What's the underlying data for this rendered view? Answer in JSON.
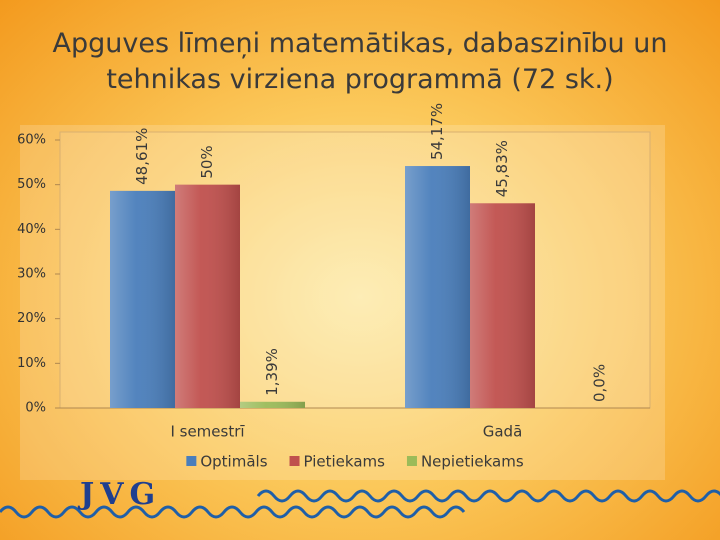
{
  "chart_data": {
    "type": "bar",
    "title": "Apguves līmeņi matemātikas, dabaszinību un tehnikas virziena programmā (72 sk.)",
    "categories": [
      "I semestrī",
      "Gadā"
    ],
    "series": [
      {
        "name": "Optimāls",
        "color": "#4a7ebb",
        "values": [
          48.61,
          54.17
        ],
        "value_labels": [
          "48,61%",
          "54,17%"
        ]
      },
      {
        "name": "Pietiekams",
        "color": "#c0504d",
        "values": [
          50,
          45.83
        ],
        "value_labels": [
          "50%",
          "45,83%"
        ]
      },
      {
        "name": "Nepietiekams",
        "color": "#9bbb59",
        "values": [
          1.39,
          0
        ],
        "value_labels": [
          "1,39%",
          "0,0%"
        ]
      }
    ],
    "ylim": [
      0,
      60
    ],
    "yticks": [
      {
        "value": 0,
        "label": "0%"
      },
      {
        "value": 10,
        "label": "10%"
      },
      {
        "value": 20,
        "label": "20%"
      },
      {
        "value": 30,
        "label": "30%"
      },
      {
        "value": 40,
        "label": "40%"
      },
      {
        "value": 50,
        "label": "50%"
      },
      {
        "value": 60,
        "label": "60%"
      }
    ],
    "grid": false,
    "legend": "bottom"
  },
  "logo": "JVG"
}
